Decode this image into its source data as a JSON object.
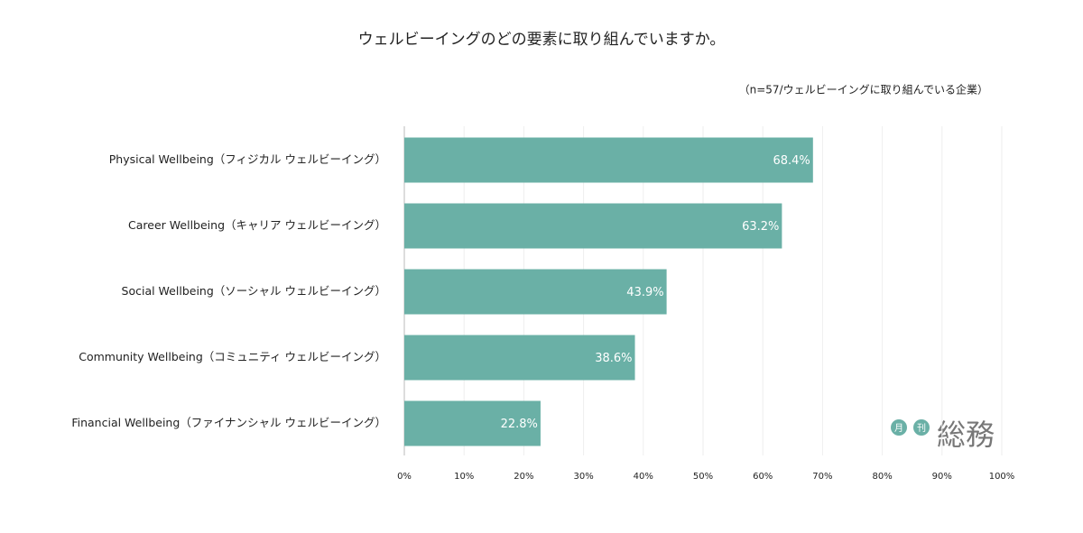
{
  "chart_data": {
    "type": "bar",
    "orientation": "horizontal",
    "title": "ウェルビーイングのどの要素に取り組んでいますか。",
    "subtitle": "（n=57/ウェルビーイングに取り組んでいる企業）",
    "categories": [
      "Physical Wellbeing（フィジカル ウェルビーイング）",
      "Career Wellbeing（キャリア ウェルビーイング）",
      "Social Wellbeing（ソーシャル ウェルビーイング）",
      "Community Wellbeing（コミュニティ ウェルビーイング）",
      "Financial Wellbeing（ファイナンシャル ウェルビーイング）"
    ],
    "values": [
      68.4,
      63.2,
      43.9,
      38.6,
      22.8
    ],
    "value_labels": [
      "68.4%",
      "63.2%",
      "43.9%",
      "38.6%",
      "22.8%"
    ],
    "color": "#6ab0a6",
    "xlim": [
      0,
      100
    ],
    "xticks": [
      {
        "value": 0,
        "label": "0%"
      },
      {
        "value": 10,
        "label": "10%"
      },
      {
        "value": 20,
        "label": "20%"
      },
      {
        "value": 30,
        "label": "30%"
      },
      {
        "value": 40,
        "label": "40%"
      },
      {
        "value": 50,
        "label": "50%"
      },
      {
        "value": 60,
        "label": "60%"
      },
      {
        "value": 70,
        "label": "70%"
      },
      {
        "value": 80,
        "label": "80%"
      },
      {
        "value": 90,
        "label": "90%"
      },
      {
        "value": 100,
        "label": "100%"
      }
    ],
    "grid": true
  },
  "logo": {
    "badge1": "月",
    "badge2": "刊",
    "text": "総務"
  }
}
